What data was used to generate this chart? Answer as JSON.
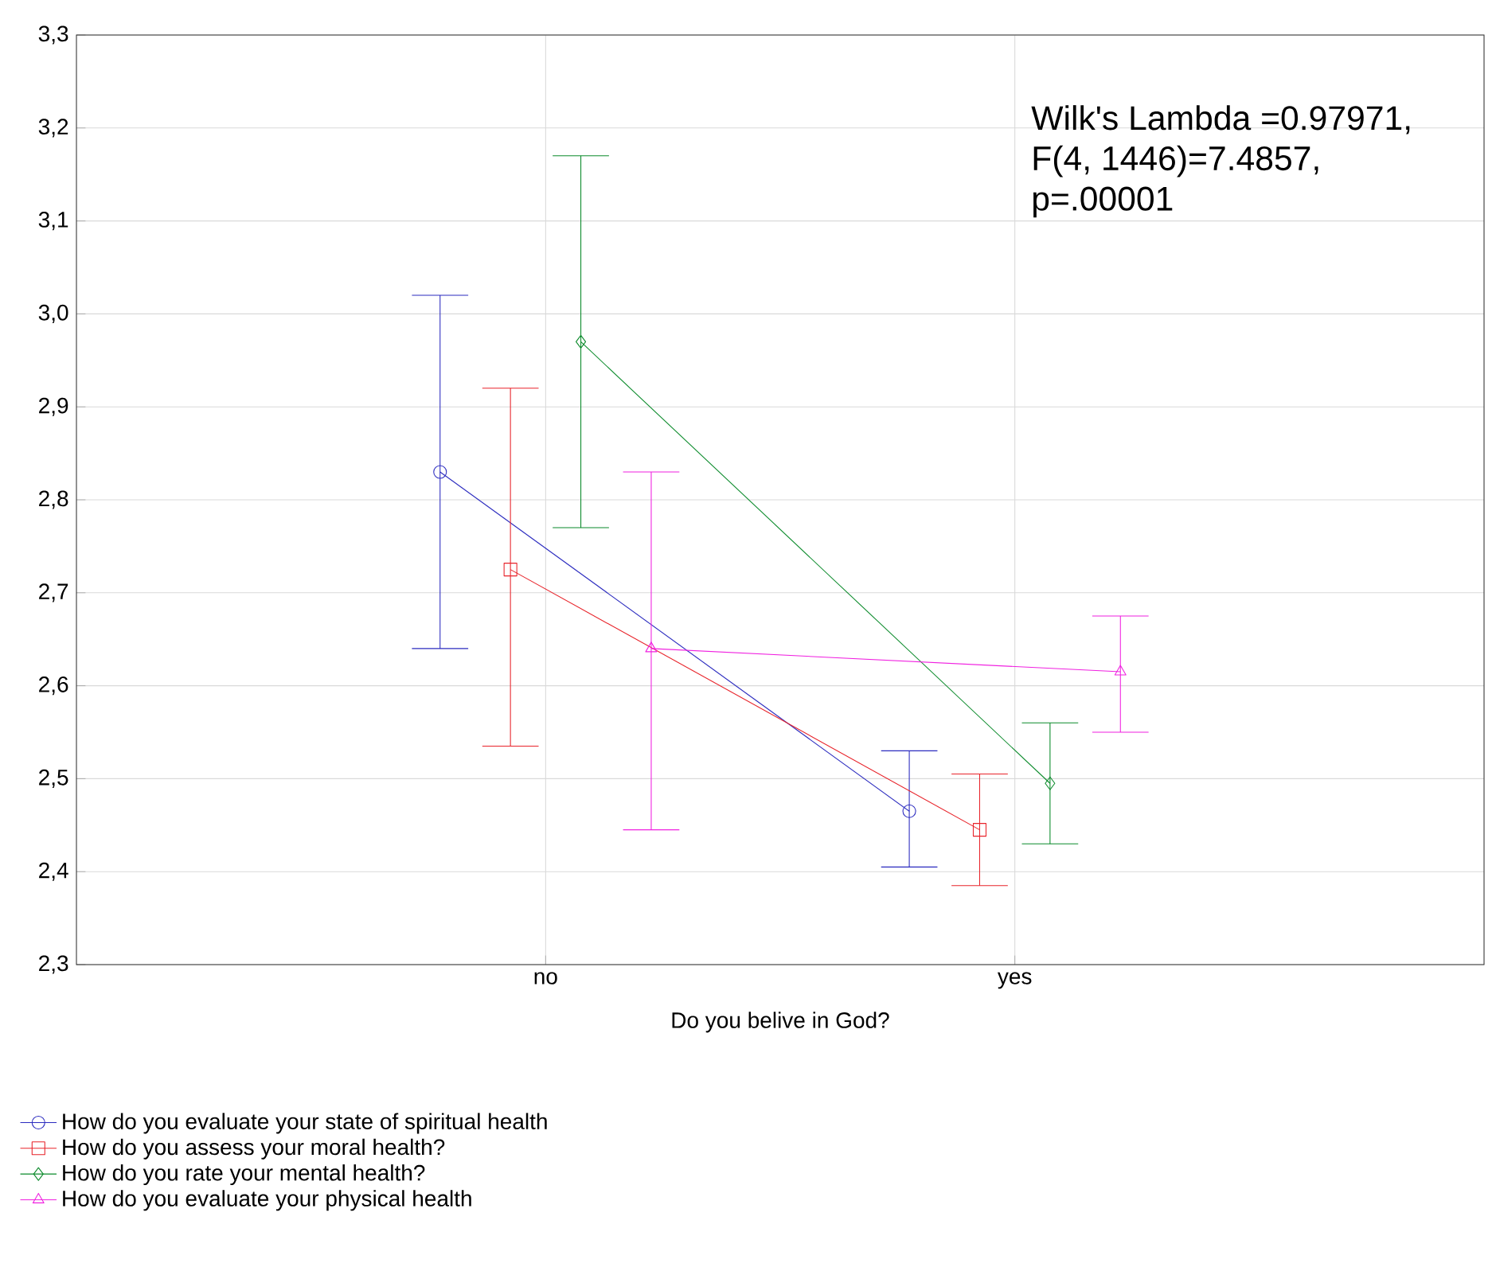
{
  "chart_data": {
    "type": "line",
    "categories": [
      "no",
      "yes"
    ],
    "xlabel": "Do you belive in God?",
    "ylim": [
      2.3,
      3.3
    ],
    "yticks": [
      {
        "value": 2.3,
        "label": "2,3"
      },
      {
        "value": 2.4,
        "label": "2,4"
      },
      {
        "value": 2.5,
        "label": "2,5"
      },
      {
        "value": 2.6,
        "label": "2,6"
      },
      {
        "value": 2.7,
        "label": "2,7"
      },
      {
        "value": 2.8,
        "label": "2,8"
      },
      {
        "value": 2.9,
        "label": "2,9"
      },
      {
        "value": 3.0,
        "label": "3,0"
      },
      {
        "value": 3.1,
        "label": "3,1"
      },
      {
        "value": 3.2,
        "label": "3,2"
      },
      {
        "value": 3.3,
        "label": "3,3"
      }
    ],
    "grid": true,
    "legend": "bottom left",
    "line_style": "solid",
    "annotations": [
      "Wilk's Lambda =0.97971,",
      "F(4, 1446)=7.4857,",
      "p=.00001"
    ],
    "series": [
      {
        "name": "How do you evaluate your state of spiritual health",
        "color": "#2b2bbf",
        "marker": "circle",
        "values": [
          2.83,
          2.465
        ],
        "errors": [
          [
            2.64,
            3.02
          ],
          [
            2.405,
            2.53
          ]
        ]
      },
      {
        "name": "How do you assess your moral health?",
        "color": "#e8232a",
        "marker": "square",
        "values": [
          2.725,
          2.445
        ],
        "errors": [
          [
            2.535,
            2.92
          ],
          [
            2.385,
            2.505
          ]
        ]
      },
      {
        "name": "How do you rate your mental health?",
        "color": "#0a8a2a",
        "marker": "diamond",
        "values": [
          2.97,
          2.495
        ],
        "errors": [
          [
            2.77,
            3.17
          ],
          [
            2.43,
            2.56
          ]
        ]
      },
      {
        "name": "How do you evaluate your physical health",
        "color": "#f020e0",
        "marker": "triangle",
        "values": [
          2.64,
          2.615
        ],
        "errors": [
          [
            2.445,
            2.83
          ],
          [
            2.55,
            2.675
          ]
        ]
      }
    ]
  }
}
